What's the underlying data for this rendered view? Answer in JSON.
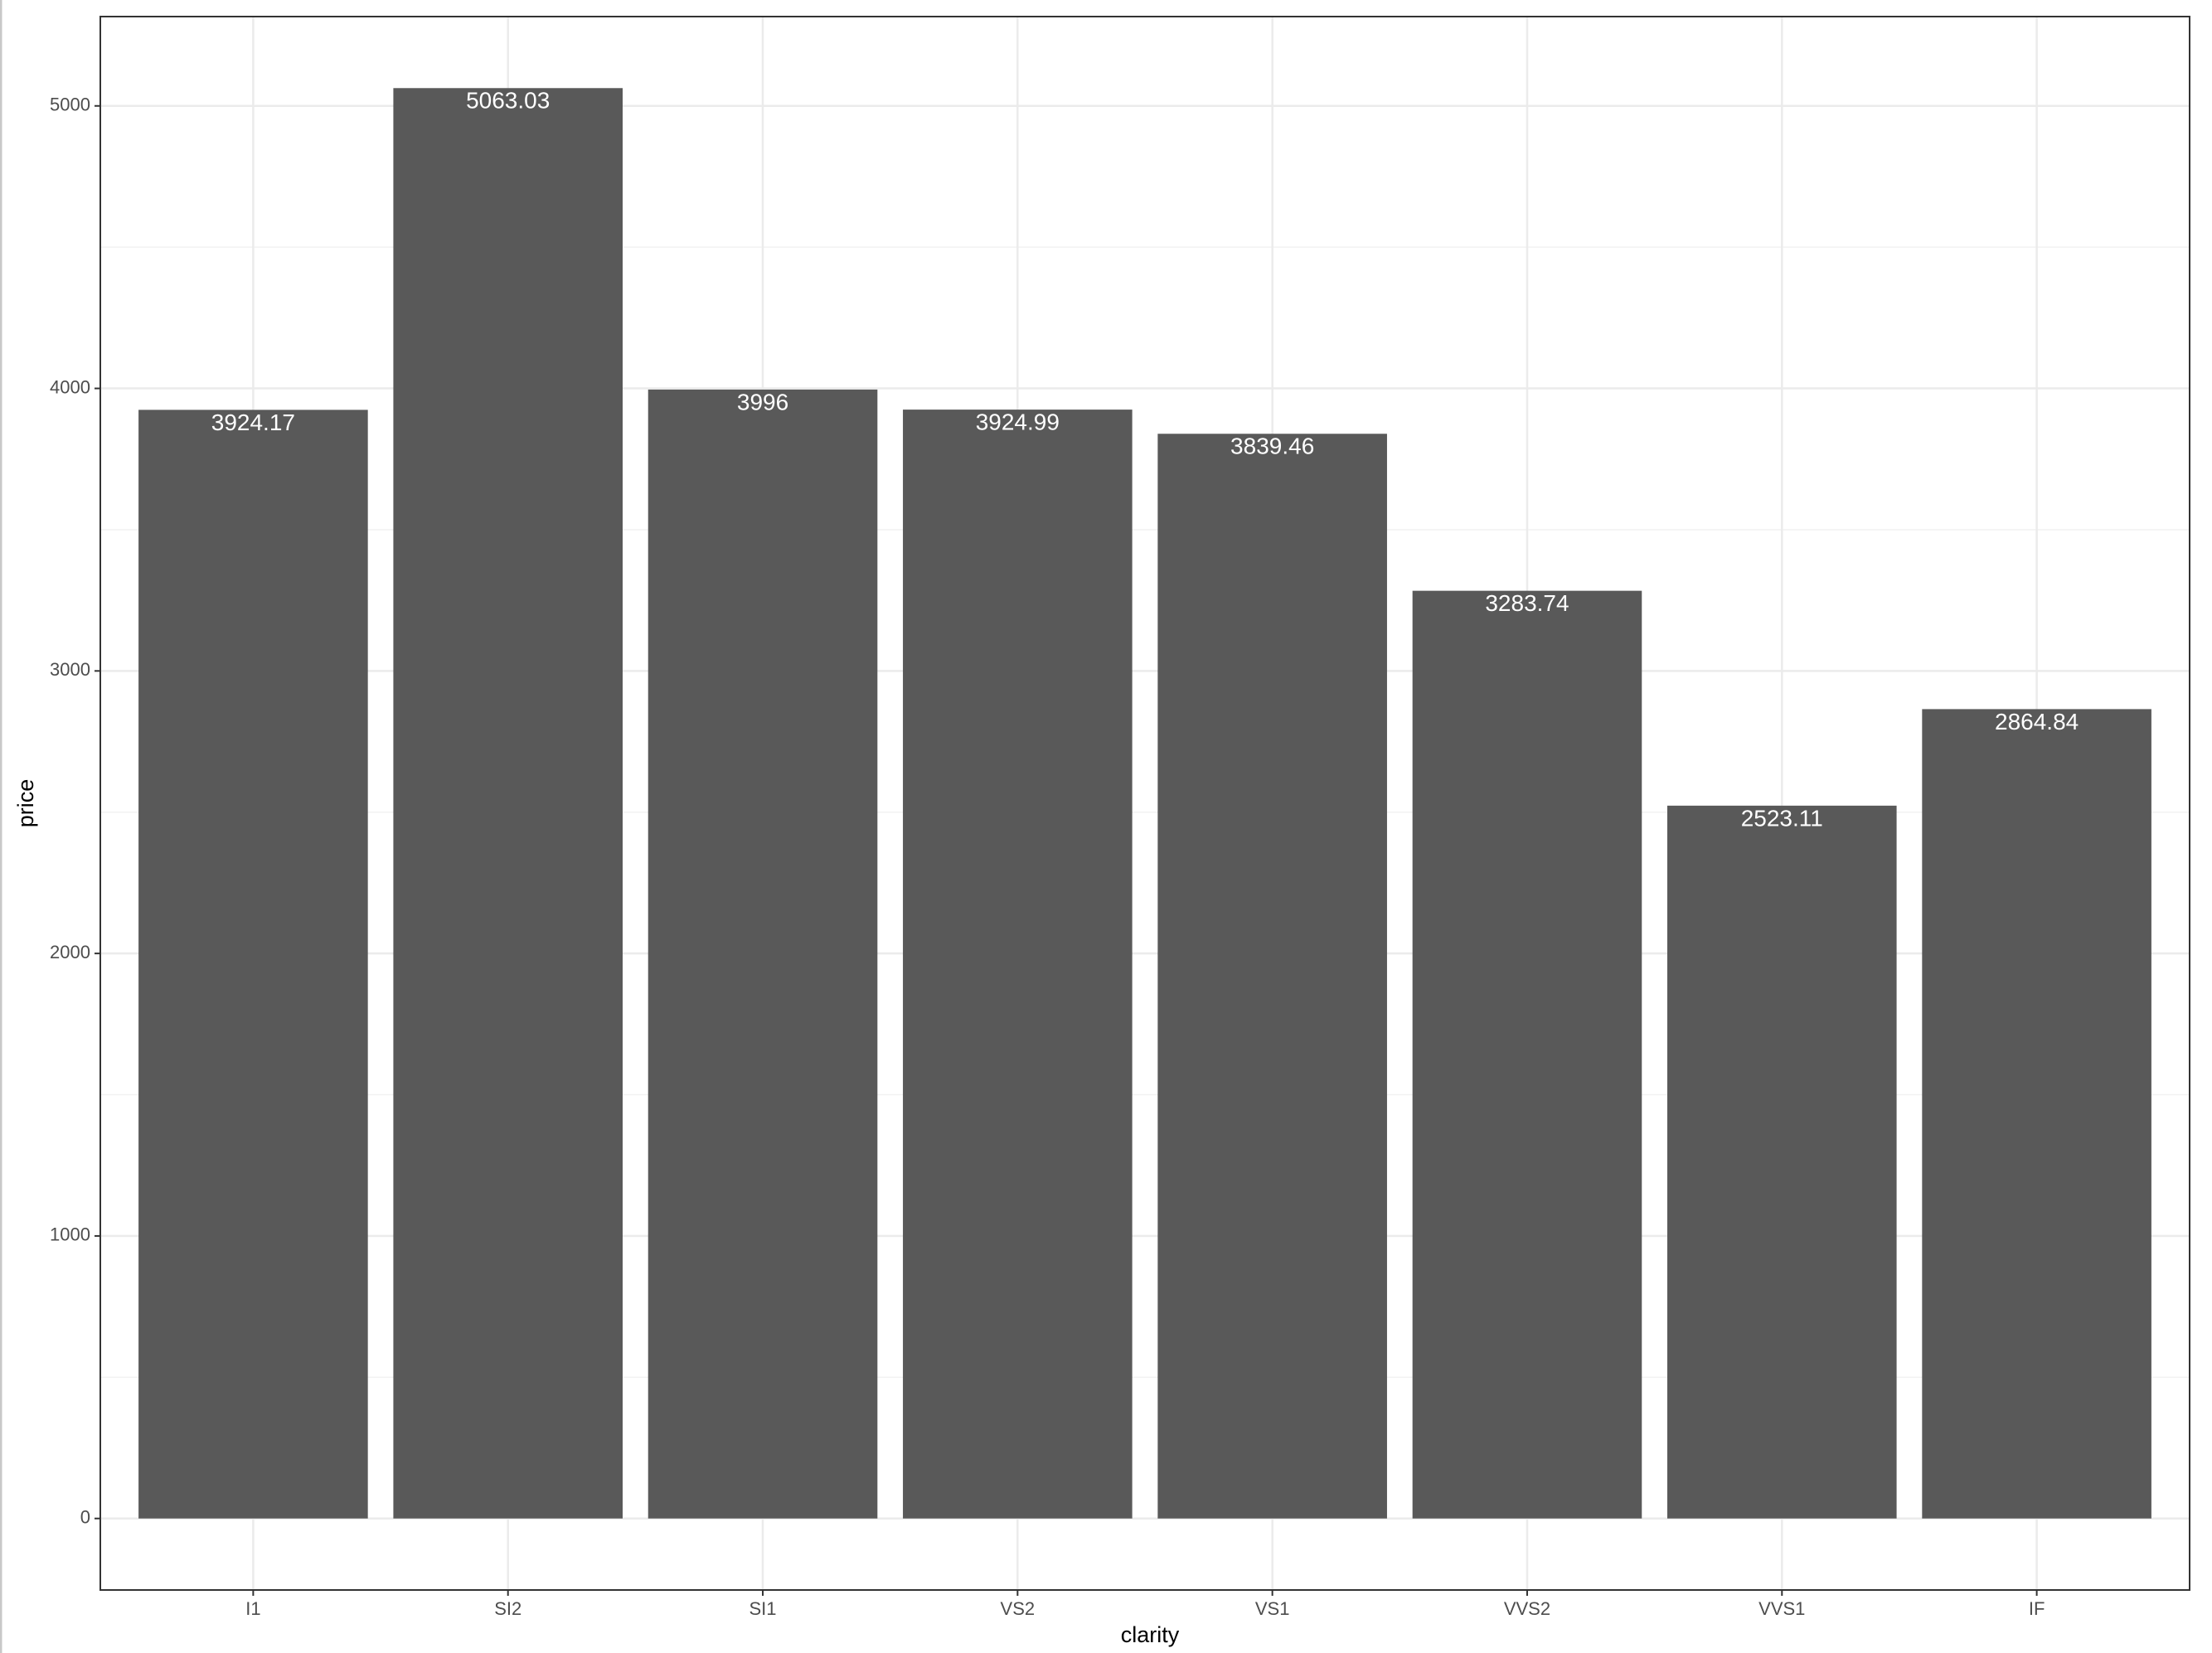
{
  "chart_data": {
    "type": "bar",
    "x_label": "clarity",
    "y_label": "price",
    "categories": [
      "I1",
      "SI2",
      "SI1",
      "VS2",
      "VS1",
      "VVS2",
      "VVS1",
      "IF"
    ],
    "values": [
      3924.17,
      5063.03,
      3996,
      3924.99,
      3839.46,
      3283.74,
      2523.11,
      2864.84
    ],
    "color": "#595959",
    "label_color": "#ffffff",
    "ylim": [
      -253.15,
      5316.18
    ],
    "yticks": [
      0,
      1000,
      2000,
      3000,
      4000,
      5000
    ],
    "grid": true
  }
}
